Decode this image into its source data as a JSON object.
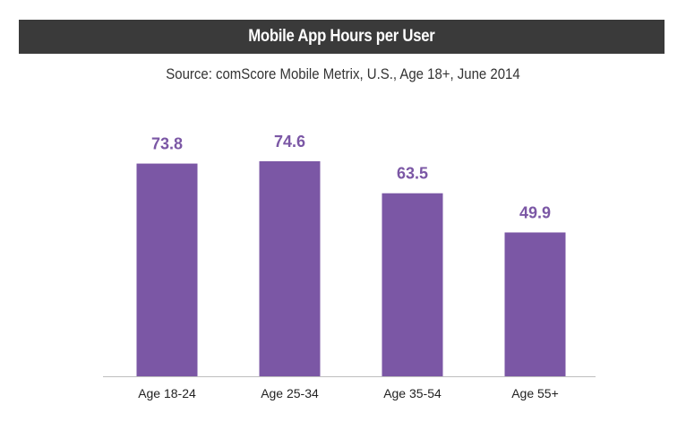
{
  "chart_data": {
    "type": "bar",
    "title": "Mobile App Hours per User",
    "subtitle": "Source: comScore Mobile Metrix, U.S., Age 18+, June 2014",
    "categories": [
      "Age 18-24",
      "Age 25-34",
      "Age 35-54",
      "Age 55+"
    ],
    "values": [
      73.8,
      74.6,
      63.5,
      49.9
    ],
    "value_labels": [
      "73.8",
      "74.6",
      "63.5",
      "49.9"
    ],
    "xlabel": "",
    "ylabel": "",
    "ylim": [
      0,
      74.6
    ],
    "grid": false,
    "legend": "none",
    "colors": {
      "bar": "#7b57a5",
      "value_label": "#7b57a5",
      "title_bar": "#3a3a3a",
      "axis": "#bfbfbf"
    }
  }
}
